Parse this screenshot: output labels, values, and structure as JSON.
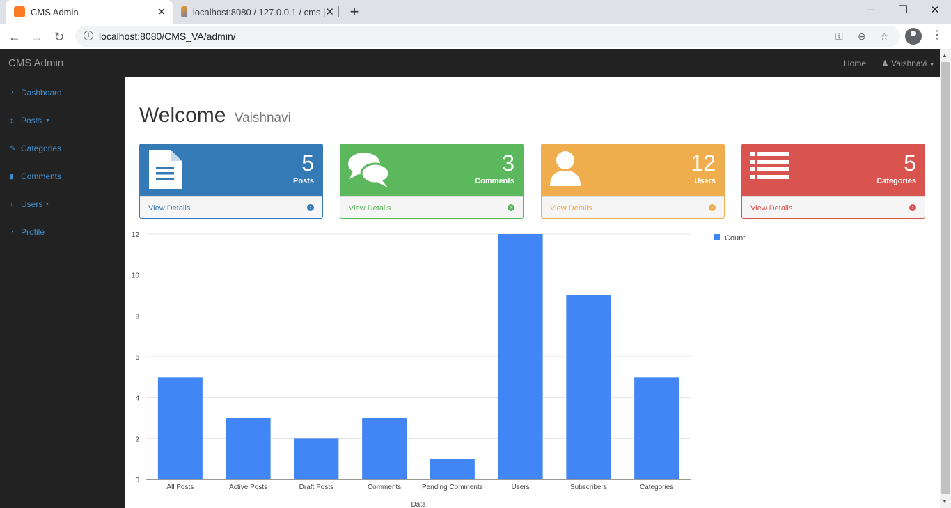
{
  "browser": {
    "tabs": [
      {
        "title": "CMS Admin",
        "active": true
      },
      {
        "title": "localhost:8080 / 127.0.0.1 / cms |",
        "active": false
      }
    ],
    "new_tab": "+",
    "url": "localhost:8080/CMS_VA/admin/",
    "win_min": "─",
    "win_max": "❐",
    "win_close": "✕"
  },
  "navbar": {
    "brand": "CMS Admin",
    "home": "Home",
    "user": "Vaishnavi"
  },
  "sidebar": {
    "items": [
      {
        "label": "Dashboard",
        "icon": "dashboard-icon"
      },
      {
        "label": "Posts",
        "icon": "arrows-v-icon",
        "dropdown": true
      },
      {
        "label": "Categories",
        "icon": "wrench-icon"
      },
      {
        "label": "Comments",
        "icon": "file-icon"
      },
      {
        "label": "Users",
        "icon": "arrows-v-icon",
        "dropdown": true
      },
      {
        "label": "Profile",
        "icon": "dashboard-icon"
      }
    ]
  },
  "page": {
    "title": "Welcome",
    "subtitle": "Vaishnavi"
  },
  "panels": [
    {
      "count": "5",
      "label": "Posts",
      "link": "View Details",
      "color": "#337ab7",
      "icon": "file-text-icon"
    },
    {
      "count": "3",
      "label": "Comments",
      "link": "View Details",
      "color": "#5cb85c",
      "icon": "comments-icon"
    },
    {
      "count": "12",
      "label": "Users",
      "link": "View Details",
      "color": "#f0ad4e",
      "icon": "user-icon"
    },
    {
      "count": "5",
      "label": "Categories",
      "link": "View Details",
      "color": "#d9534f",
      "icon": "list-icon"
    }
  ],
  "chart_data": {
    "type": "bar",
    "categories": [
      "All Posts",
      "Active Posts",
      "Draft Posts",
      "Comments",
      "Pending Comments",
      "Users",
      "Subscribers",
      "Categories"
    ],
    "series": [
      {
        "name": "Count",
        "values": [
          5,
          3,
          2,
          3,
          1,
          12,
          9,
          5
        ]
      }
    ],
    "xlabel": "Data",
    "ylabel": "",
    "ylim": [
      0,
      12
    ],
    "yticks": [
      0,
      2,
      4,
      6,
      8,
      10,
      12
    ],
    "legend": "top-right",
    "bar_color": "#4285f4"
  }
}
